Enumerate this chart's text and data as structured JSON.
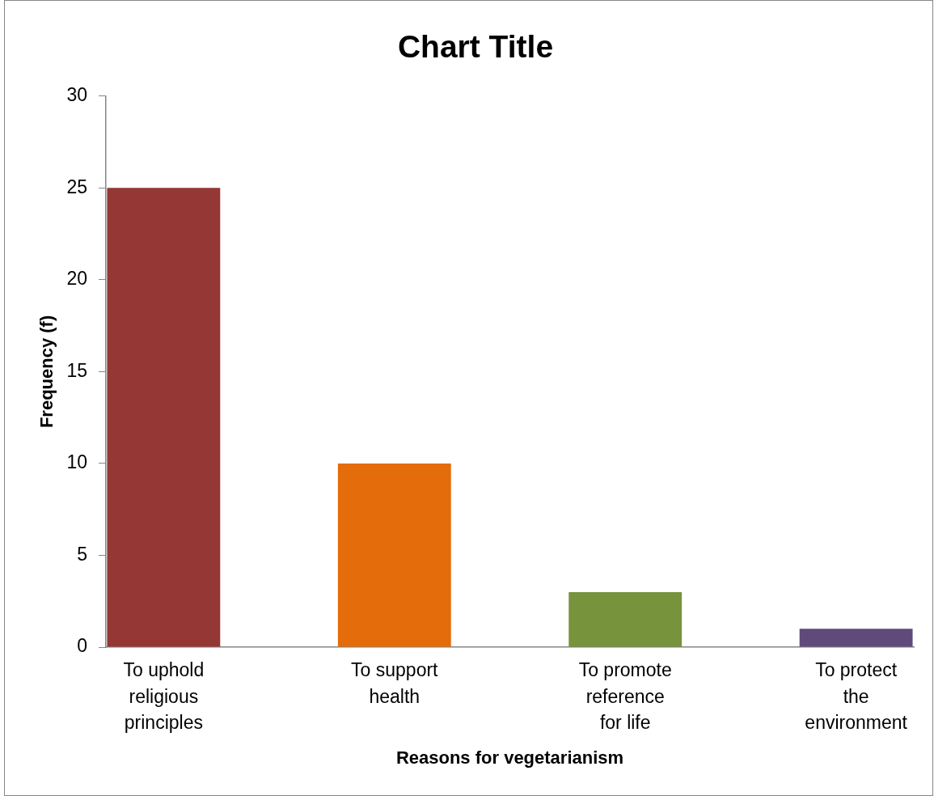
{
  "chart_data": {
    "type": "bar",
    "title": "Chart Title",
    "xlabel": "Reasons for vegetarianism",
    "ylabel": "Frequency (f)",
    "categories": [
      "To uphold religious principles",
      "To support health",
      "To promote reference for life",
      "To protect the environment"
    ],
    "values": [
      25,
      10,
      3,
      1
    ],
    "colors": [
      "#953735",
      "#e46c0a",
      "#77933c",
      "#604a7b"
    ],
    "ylim": [
      0,
      30
    ],
    "yticks": [
      0,
      5,
      10,
      15,
      20,
      25,
      30
    ]
  }
}
